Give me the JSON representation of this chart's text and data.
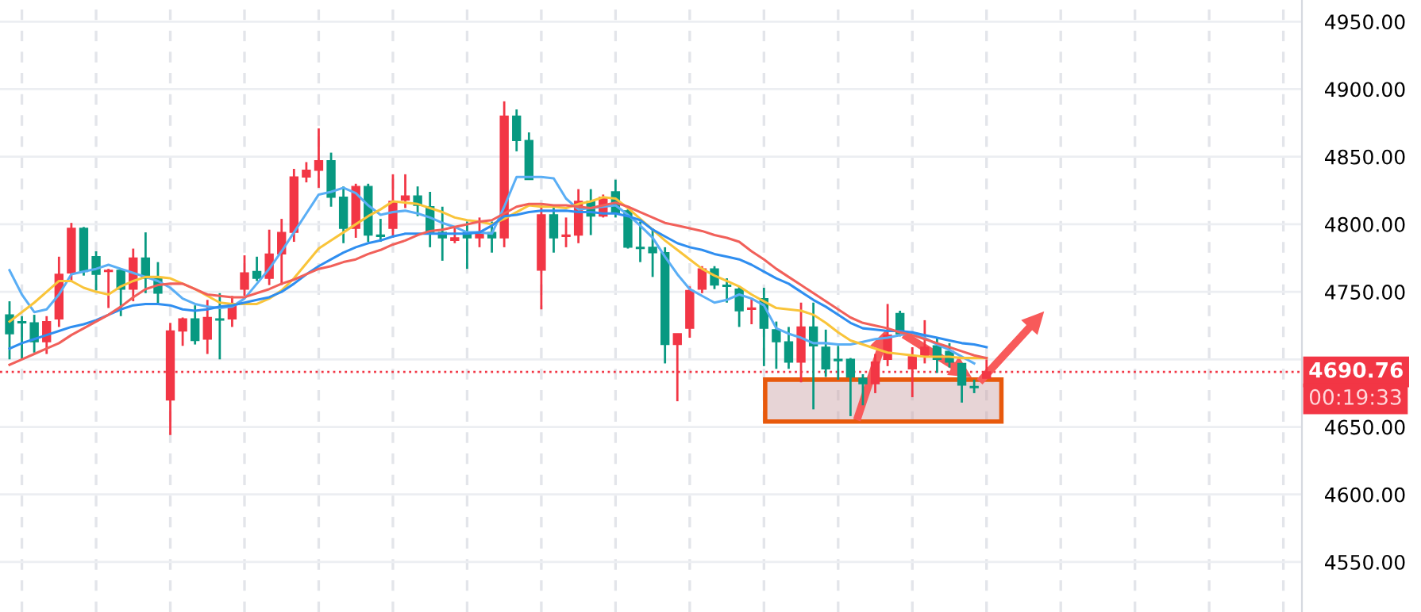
{
  "chart_data": {
    "type": "candlestick",
    "categories": [
      null,
      null,
      null,
      null,
      null,
      null,
      null,
      null,
      null,
      null,
      null,
      null,
      null,
      null,
      null,
      null,
      null,
      null,
      null,
      null,
      null,
      null,
      null,
      null,
      null,
      null,
      null,
      null,
      null,
      null,
      null,
      null,
      null,
      null,
      null,
      null,
      null,
      null,
      null,
      null,
      null,
      null,
      null,
      null,
      null,
      null,
      null,
      null,
      null,
      null,
      null,
      null,
      null,
      null,
      null,
      null,
      null,
      null,
      null,
      null,
      null,
      null,
      null,
      null,
      null,
      null,
      null,
      null,
      null,
      null,
      null,
      null,
      null,
      null,
      null,
      null,
      null,
      null,
      null,
      null,
      null,
      null,
      null,
      null,
      null,
      null,
      null,
      null,
      null,
      null,
      null,
      null,
      null,
      null,
      null,
      null,
      null,
      null,
      null,
      null,
      null,
      null,
      null,
      null,
      null
    ],
    "ohlc": [
      [
        4733,
        4743,
        4700,
        4719
      ],
      [
        4728,
        4732,
        4700,
        4727
      ],
      [
        4727,
        4733,
        4705,
        4713
      ],
      [
        4713,
        4732,
        4704,
        4728
      ],
      [
        4730,
        4776,
        4724,
        4763
      ],
      [
        4764,
        4801,
        4758,
        4797
      ],
      [
        4797,
        4798,
        4762,
        4765
      ],
      [
        4776,
        4780,
        4751,
        4763
      ],
      [
        4765,
        4767,
        4738,
        4766
      ],
      [
        4766,
        4767,
        4732,
        4752
      ],
      [
        4752,
        4782,
        4743,
        4775
      ],
      [
        4775,
        4794,
        4749,
        4760
      ],
      [
        4760,
        4772,
        4741,
        4749
      ],
      [
        4670,
        4727,
        4644,
        4721
      ],
      [
        4721,
        4731,
        4710,
        4730
      ],
      [
        4730,
        4740,
        4711,
        4714
      ],
      [
        4715,
        4744,
        4704,
        4731
      ],
      [
        4730,
        4749,
        4700,
        4729
      ],
      [
        4730,
        4747,
        4724,
        4741
      ],
      [
        4752,
        4777,
        4747,
        4764
      ],
      [
        4765,
        4776,
        4758,
        4760
      ],
      [
        4760,
        4796,
        4755,
        4778
      ],
      [
        4778,
        4804,
        4755,
        4794
      ],
      [
        4794,
        4841,
        4787,
        4835
      ],
      [
        4835,
        4846,
        4831,
        4840
      ],
      [
        4840,
        4871,
        4827,
        4847
      ],
      [
        4847,
        4853,
        4813,
        4820
      ],
      [
        4820,
        4828,
        4786,
        4797
      ],
      [
        4797,
        4830,
        4790,
        4828
      ],
      [
        4828,
        4830,
        4787,
        4792
      ],
      [
        4792,
        4804,
        4787,
        4791
      ],
      [
        4797,
        4837,
        4790,
        4817
      ],
      [
        4818,
        4837,
        4812,
        4821
      ],
      [
        4821,
        4828,
        4806,
        4814
      ],
      [
        4813,
        4824,
        4783,
        4794
      ],
      [
        4794,
        4813,
        4773,
        4790
      ],
      [
        4788,
        4798,
        4786,
        4790
      ],
      [
        4794,
        4802,
        4767,
        4790
      ],
      [
        4790,
        4805,
        4783,
        4794
      ],
      [
        4794,
        4802,
        4779,
        4790
      ],
      [
        4790,
        4891,
        4783,
        4880
      ],
      [
        4880,
        4885,
        4854,
        4862
      ],
      [
        4862,
        4868,
        4833,
        4833
      ],
      [
        4766,
        4814,
        4737,
        4807
      ],
      [
        4807,
        4814,
        4779,
        4790
      ],
      [
        4791,
        4805,
        4783,
        4792
      ],
      [
        4792,
        4826,
        4786,
        4817
      ],
      [
        4817,
        4826,
        4792,
        4806
      ],
      [
        4806,
        4822,
        4805,
        4820
      ],
      [
        4824,
        4833,
        4805,
        4808
      ],
      [
        4810,
        4811,
        4782,
        4783
      ],
      [
        4783,
        4802,
        4772,
        4782
      ],
      [
        4783,
        4797,
        4761,
        4779
      ],
      [
        4779,
        4783,
        4697,
        4711
      ],
      [
        4711,
        4719,
        4669,
        4719
      ],
      [
        4723,
        4754,
        4716,
        4751
      ],
      [
        4752,
        4769,
        4749,
        4767
      ],
      [
        4767,
        4769,
        4752,
        4755
      ],
      [
        4755,
        4760,
        4742,
        4754
      ],
      [
        4752,
        4754,
        4724,
        4736
      ],
      [
        4737,
        4745,
        4726,
        4738
      ],
      [
        4745,
        4753,
        4695,
        4723
      ],
      [
        4722,
        4728,
        4693,
        4713
      ],
      [
        4713,
        4724,
        4693,
        4698
      ],
      [
        4698,
        4742,
        4683,
        4724
      ],
      [
        4724,
        4742,
        4663,
        4710
      ],
      [
        4709,
        4722,
        4687,
        4693
      ],
      [
        4700,
        4710,
        4685,
        4699
      ],
      [
        4700,
        4701,
        4658,
        4687
      ],
      [
        4686,
        4689,
        4666,
        4682
      ],
      [
        4682,
        4704,
        4675,
        4698
      ],
      [
        4700,
        4741,
        4695,
        4718
      ],
      [
        4734,
        4736,
        4717,
        4719
      ],
      [
        4693,
        4709,
        4672,
        4702
      ],
      [
        4702,
        4729,
        4697,
        4709
      ],
      [
        4710,
        4716,
        4690,
        4700
      ],
      [
        4706,
        4712,
        4694,
        4698
      ],
      [
        4697,
        4697,
        4668,
        4681
      ],
      [
        4680,
        4685,
        4675,
        4679
      ],
      [
        4686,
        4700,
        4686,
        4690.76
      ],
      null,
      null,
      null,
      null,
      null,
      null,
      null,
      null,
      null,
      null,
      null,
      null,
      null,
      null,
      null,
      null,
      null,
      null,
      null,
      null,
      null,
      null,
      null,
      null,
      null
    ],
    "colors": [
      "#089981",
      "#089981",
      "#089981",
      "#f23645",
      "#f23645",
      "#f23645",
      "#089981",
      "#089981",
      "#f23645",
      "#089981",
      "#f23645",
      "#089981",
      "#089981",
      "#f23645",
      "#f23645",
      "#089981",
      "#f23645",
      "#089981",
      "#f23645",
      "#f23645",
      "#089981",
      "#f23645",
      "#f23645",
      "#f23645",
      "#f23645",
      "#f23645",
      "#089981",
      "#089981",
      "#f23645",
      "#089981",
      "#089981",
      "#f23645",
      "#f23645",
      "#089981",
      "#089981",
      "#089981",
      "#f23645",
      "#089981",
      "#f23645",
      "#089981",
      "#f23645",
      "#089981",
      "#089981",
      "#f23645",
      "#089981",
      "#f23645",
      "#f23645",
      "#089981",
      "#f23645",
      "#089981",
      "#089981",
      "#089981",
      "#089981",
      "#089981",
      "#f23645",
      "#f23645",
      "#f23645",
      "#089981",
      "#089981",
      "#089981",
      "#f23645",
      "#089981",
      "#089981",
      "#089981",
      "#f23645",
      "#089981",
      "#089981",
      "#089981",
      "#089981",
      "#089981",
      "#f23645",
      "#f23645",
      "#089981",
      "#f23645",
      "#f23645",
      "#089981",
      "#089981",
      "#089981",
      "#089981",
      "#f23645",
      null,
      null,
      null,
      null,
      null,
      null,
      null,
      null,
      null,
      null,
      null,
      null,
      null,
      null,
      null,
      null,
      null,
      null,
      null,
      null,
      null,
      null,
      null,
      null,
      null
    ],
    "series": [
      {
        "type": "line",
        "color": "#5aaef5",
        "values": [
          4766,
          4748,
          4735,
          4737,
          4748,
          4763,
          4765,
          4767,
          4770,
          4767,
          4764,
          4761,
          4758,
          4753,
          4745,
          4741,
          4739,
          4738,
          4739,
          4745,
          4756,
          4767,
          4780,
          4794,
          4808,
          4822,
          4824,
          4827,
          4823,
          4814,
          4807,
          4809,
          4810,
          4808,
          4805,
          4801,
          4798,
          4794,
          4794,
          4793,
          4813,
          4835,
          4835,
          4835,
          4834,
          4819,
          4811,
          4812,
          4813,
          4814,
          4807,
          4799,
          4790,
          4776,
          4763,
          4752,
          4747,
          4742,
          4744,
          4748,
          4745,
          4740,
          4723,
          4719,
          4716,
          4712,
          4712,
          4711,
          4711,
          4713,
          4715,
          4716,
          4718,
          4720,
          4716,
          4711,
          4707,
          4702,
          4697,
          null,
          null,
          null,
          null,
          null,
          null,
          null,
          null,
          null,
          null,
          null,
          null,
          null,
          null,
          null,
          null,
          null,
          null,
          null,
          null,
          null,
          null,
          null,
          null,
          null,
          null
        ]
      },
      {
        "type": "line",
        "color": "#f9c43a",
        "values": [
          4728,
          4735,
          4742,
          4750,
          4758,
          4758,
          4753,
          4750,
          4748,
          4754,
          4758,
          4761,
          4761,
          4760,
          4756,
          4752,
          4747,
          4742,
          4741,
          4741,
          4741,
          4745,
          4751,
          4760,
          4771,
          4782,
          4788,
          4794,
          4800,
          4806,
          4811,
          4817,
          4816,
          4815,
          4812,
          4809,
          4805,
          4803,
          4802,
          4800,
          4804,
          4809,
          4814,
          4813,
          4813,
          4812,
          4815,
          4817,
          4820,
          4819,
          4812,
          4804,
          4796,
          4788,
          4781,
          4774,
          4767,
          4762,
          4758,
          4754,
          4748,
          4743,
          4738,
          4737,
          4736,
          4733,
          4727,
          4720,
          4714,
          4711,
          4708,
          4705,
          4704,
          4703,
          4702,
          4702,
          4702,
          4701,
          4701,
          4701,
          null,
          null,
          null,
          null,
          null,
          null,
          null,
          null,
          null,
          null,
          null,
          null,
          null,
          null,
          null,
          null,
          null,
          null,
          null,
          null,
          null,
          null,
          null,
          null,
          null
        ]
      },
      {
        "type": "line",
        "color": "#2f8ef0",
        "values": [
          4708,
          4712,
          4715,
          4718,
          4721,
          4724,
          4726,
          4729,
          4733,
          4737,
          4740,
          4741,
          4741,
          4740,
          4737,
          4736,
          4737,
          4739,
          4740,
          4742,
          4744,
          4746,
          4750,
          4756,
          4763,
          4769,
          4774,
          4779,
          4783,
          4786,
          4788,
          4791,
          4793,
          4793,
          4793,
          4793,
          4793,
          4793,
          4794,
          4799,
          4806,
          4807,
          4809,
          4810,
          4810,
          4810,
          4809,
          4809,
          4808,
          4808,
          4806,
          4803,
          4796,
          4791,
          4786,
          4783,
          4781,
          4778,
          4776,
          4774,
          4770,
          4765,
          4760,
          4756,
          4750,
          4744,
          4739,
          4733,
          4727,
          4723,
          4722,
          4721,
          4721,
          4720,
          4718,
          4716,
          4714,
          4712,
          4711,
          4709,
          null,
          null,
          null,
          null,
          null,
          null,
          null,
          null,
          null,
          null,
          null,
          null,
          null,
          null,
          null,
          null,
          null,
          null,
          null,
          null,
          null,
          null,
          null,
          null,
          null
        ]
      },
      {
        "type": "line",
        "color": "#f1605a",
        "values": [
          4696,
          4700,
          4704,
          4708,
          4712,
          4718,
          4723,
          4728,
          4733,
          4739,
          4746,
          4752,
          4755,
          4756,
          4756,
          4752,
          4748,
          4747,
          4746,
          4746,
          4749,
          4752,
          4756,
          4759,
          4763,
          4767,
          4769,
          4772,
          4774,
          4778,
          4781,
          4785,
          4788,
          4792,
          4795,
          4796,
          4798,
          4800,
          4802,
          4803,
          4808,
          4813,
          4815,
          4815,
          4814,
          4814,
          4813,
          4812,
          4814,
          4816,
          4813,
          4809,
          4805,
          4801,
          4799,
          4797,
          4795,
          4792,
          4790,
          4787,
          4780,
          4774,
          4767,
          4761,
          4755,
          4749,
          4743,
          4737,
          4731,
          4727,
          4725,
          4723,
          4720,
          4718,
          4715,
          4712,
          4709,
          4706,
          4703,
          4701,
          null,
          null,
          null,
          null,
          null,
          null,
          null,
          null,
          null,
          null,
          null,
          null,
          null,
          null,
          null,
          null,
          null,
          null,
          null,
          null,
          null,
          null,
          null,
          null,
          null
        ]
      }
    ],
    "ylim": [
      4513,
      4966
    ],
    "yticks": [
      {
        "value": 4550,
        "label": "4550.00"
      },
      {
        "value": 4600,
        "label": "4600.00"
      },
      {
        "value": 4650,
        "label": "4650.00"
      },
      {
        "value": 4700,
        "label": null
      },
      {
        "value": 4750,
        "label": "4750.00"
      },
      {
        "value": 4800,
        "label": "4800.00"
      },
      {
        "value": 4850,
        "label": "4850.00"
      },
      {
        "value": 4900,
        "label": "4900.00"
      },
      {
        "value": 4950,
        "label": "4950.00"
      }
    ],
    "tick_labels": "y",
    "grid": true,
    "line_style": "solid",
    "ref_lines": [
      {
        "axis": "y",
        "value": 4690.76,
        "label": "4690.76",
        "color": "#f23645",
        "line_style": "dotted"
      }
    ],
    "annotations": [
      "00:19:33"
    ]
  }
}
